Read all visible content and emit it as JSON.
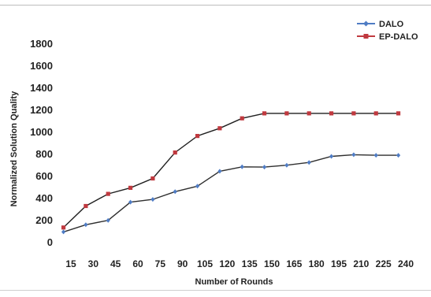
{
  "chart_data": {
    "type": "line",
    "title": "",
    "xlabel": "Number of Rounds",
    "ylabel": "Normalized Solution Quality",
    "x_ticks": [
      "15",
      "30",
      "45",
      "60",
      "75",
      "90",
      "105",
      "120",
      "135",
      "150",
      "165",
      "180",
      "195",
      "210",
      "225",
      "240"
    ],
    "y_ticks": [
      "0",
      "200",
      "400",
      "600",
      "800",
      "1000",
      "1200",
      "1400",
      "1600",
      "1800"
    ],
    "xlim": [
      15,
      240
    ],
    "ylim": [
      0,
      1800
    ],
    "grid": false,
    "legend_position": "top-right",
    "series": [
      {
        "name": "DALO",
        "color": "#4f7cc4",
        "marker": "diamond",
        "points": [
          [
            10,
            90
          ],
          [
            25,
            155
          ],
          [
            40,
            195
          ],
          [
            55,
            360
          ],
          [
            70,
            385
          ],
          [
            85,
            455
          ],
          [
            100,
            505
          ],
          [
            115,
            640
          ],
          [
            130,
            680
          ],
          [
            145,
            678
          ],
          [
            160,
            695
          ],
          [
            175,
            720
          ],
          [
            190,
            775
          ],
          [
            205,
            790
          ],
          [
            220,
            785
          ],
          [
            235,
            785
          ]
        ]
      },
      {
        "name": "EP-DALO",
        "color": "#c0393f",
        "marker": "square",
        "points": [
          [
            10,
            130
          ],
          [
            25,
            325
          ],
          [
            40,
            435
          ],
          [
            55,
            490
          ],
          [
            70,
            575
          ],
          [
            85,
            810
          ],
          [
            100,
            960
          ],
          [
            115,
            1030
          ],
          [
            130,
            1120
          ],
          [
            145,
            1165
          ],
          [
            160,
            1165
          ],
          [
            175,
            1165
          ],
          [
            190,
            1165
          ],
          [
            205,
            1165
          ],
          [
            220,
            1165
          ],
          [
            235,
            1165
          ]
        ]
      }
    ]
  }
}
